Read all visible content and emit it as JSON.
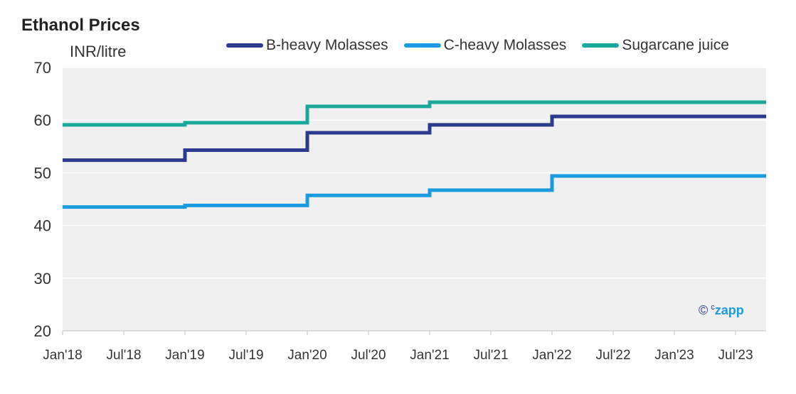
{
  "header": {
    "title": "Ethanol Prices",
    "unit": "INR/litre"
  },
  "watermark": {
    "symbol": "©",
    "brand_prefix": "c",
    "brand": "zapp"
  },
  "chart_data": {
    "type": "line",
    "title": "Ethanol Prices",
    "ylabel": "INR/litre",
    "xlabel": "",
    "ylim": [
      20,
      70
    ],
    "yticks": [
      20,
      30,
      40,
      50,
      60,
      70
    ],
    "xlim": [
      "2018-01",
      "2023-10"
    ],
    "xticks": [
      "Jan'18",
      "Jul'18",
      "Jan'19",
      "Jul'19",
      "Jan'20",
      "Jul'20",
      "Jan'21",
      "Jul'21",
      "Jan'22",
      "Jul'22",
      "Jan'23",
      "Jul'23"
    ],
    "step": true,
    "grid": true,
    "legend_position": "top",
    "series": [
      {
        "name": "B-heavy Molasses",
        "color": "#2a3a8c",
        "x": [
          "2018-01",
          "2019-01",
          "2020-01",
          "2021-01",
          "2022-01",
          "2023-10"
        ],
        "values": [
          52.4,
          54.3,
          57.6,
          59.1,
          60.7,
          60.7
        ]
      },
      {
        "name": "C-heavy Molasses",
        "color": "#1a9be0",
        "x": [
          "2018-01",
          "2019-01",
          "2020-01",
          "2021-01",
          "2022-01",
          "2023-10"
        ],
        "values": [
          43.5,
          43.8,
          45.7,
          46.7,
          49.4,
          49.4
        ]
      },
      {
        "name": "Sugarcane juice",
        "color": "#1aa89a",
        "x": [
          "2018-01",
          "2019-01",
          "2020-01",
          "2021-01",
          "2022-01",
          "2023-10"
        ],
        "values": [
          59.1,
          59.5,
          62.6,
          63.4,
          63.4,
          63.4
        ]
      }
    ]
  }
}
